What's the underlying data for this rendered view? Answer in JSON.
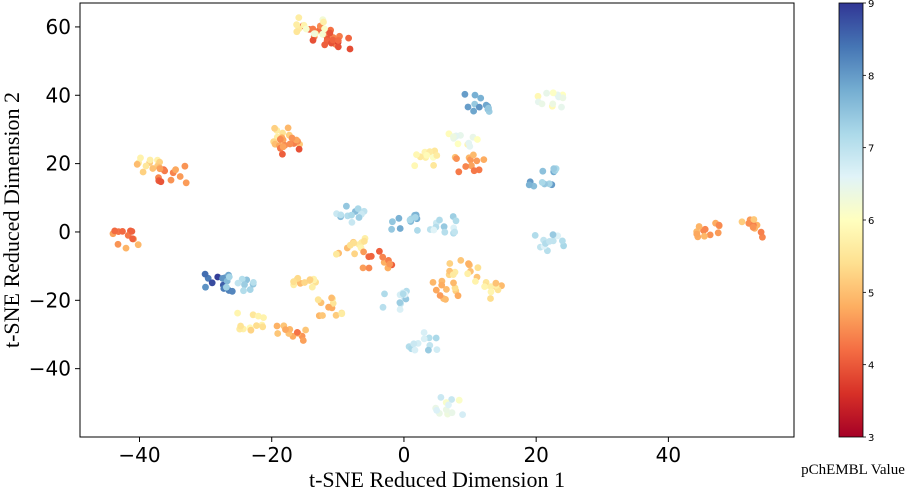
{
  "chart_data": {
    "type": "scatter",
    "xlabel": "t-SNE Reduced Dimension 1",
    "ylabel": "t-SNE Reduced Dimension 2",
    "xlim": [
      -49,
      59
    ],
    "ylim": [
      -60,
      67
    ],
    "xticks": [
      -40,
      -20,
      0,
      20,
      40
    ],
    "yticks": [
      -40,
      -20,
      0,
      20,
      40,
      60
    ],
    "xtick_labels": [
      "−40",
      "−20",
      "0",
      "20",
      "40"
    ],
    "ytick_labels": [
      "−40",
      "−20",
      "0",
      "20",
      "40",
      "60"
    ],
    "grid": false,
    "colorbar": {
      "label": "pChEMBL Value",
      "range": [
        3,
        9
      ],
      "ticks": [
        "3",
        "4",
        "5",
        "6",
        "7",
        "8",
        "9"
      ],
      "colormap": "RdYlBu",
      "colors": [
        "#a50026",
        "#d73027",
        "#f46d43",
        "#fdae61",
        "#fee090",
        "#ffffbf",
        "#e0f3f8",
        "#abd9e9",
        "#74add1",
        "#4575b4",
        "#313695"
      ]
    },
    "clusters": [
      {
        "x": -13,
        "y": 58,
        "value": 4.1
      },
      {
        "x": -10,
        "y": 56,
        "value": 4.0
      },
      {
        "x": -14,
        "y": 60,
        "value": 5.9
      },
      {
        "x": -42,
        "y": -2,
        "value": 4.5
      },
      {
        "x": -39,
        "y": 19,
        "value": 5.3
      },
      {
        "x": -35,
        "y": 17,
        "value": 4.4
      },
      {
        "x": -18,
        "y": 28,
        "value": 5.2
      },
      {
        "x": -18,
        "y": 25,
        "value": 4.3
      },
      {
        "x": 11,
        "y": 38,
        "value": 7.7
      },
      {
        "x": 22,
        "y": 39,
        "value": 6.3
      },
      {
        "x": 21,
        "y": 16,
        "value": 7.6
      },
      {
        "x": 10,
        "y": 20,
        "value": 4.7
      },
      {
        "x": 9,
        "y": 26,
        "value": 6.2
      },
      {
        "x": 3,
        "y": 22,
        "value": 5.8
      },
      {
        "x": 46,
        "y": 1,
        "value": 4.8
      },
      {
        "x": 52,
        "y": 1,
        "value": 4.8
      },
      {
        "x": 22,
        "y": -3,
        "value": 7.0
      },
      {
        "x": -28,
        "y": -15,
        "value": 8.5
      },
      {
        "x": -25,
        "y": -15,
        "value": 7.4
      },
      {
        "x": -23,
        "y": -26,
        "value": 5.6
      },
      {
        "x": -17,
        "y": -30,
        "value": 4.7
      },
      {
        "x": 7,
        "y": -51,
        "value": 6.5
      },
      {
        "x": 3,
        "y": -32,
        "value": 7.0
      },
      {
        "x": -8,
        "y": 5,
        "value": 7.3
      },
      {
        "x": -8,
        "y": -4,
        "value": 5.4
      },
      {
        "x": -4,
        "y": -8,
        "value": 4.5
      },
      {
        "x": 6,
        "y": 2,
        "value": 7.0
      },
      {
        "x": 0,
        "y": 3,
        "value": 7.5
      },
      {
        "x": 9,
        "y": -11,
        "value": 5.3
      },
      {
        "x": 13,
        "y": -17,
        "value": 5.4
      },
      {
        "x": -11,
        "y": -22,
        "value": 5.2
      },
      {
        "x": -15,
        "y": -14,
        "value": 5.4
      },
      {
        "x": 6,
        "y": -17,
        "value": 5.0
      },
      {
        "x": -1,
        "y": -20,
        "value": 7.0
      }
    ]
  }
}
